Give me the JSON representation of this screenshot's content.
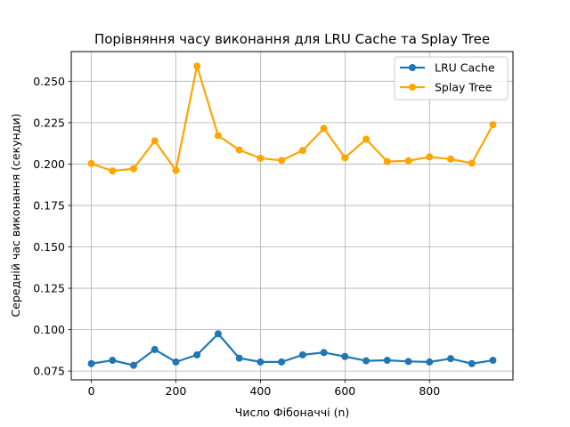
{
  "chart_data": {
    "type": "line",
    "title": "Порівняння часу виконання для LRU Cache та Splay Tree",
    "xlabel": "Число Фібоначчі (n)",
    "ylabel": "Середній час виконання (секунди)",
    "x": [
      0,
      50,
      100,
      150,
      200,
      250,
      300,
      350,
      400,
      450,
      500,
      550,
      600,
      650,
      700,
      750,
      800,
      850,
      900,
      950
    ],
    "xlim": [
      -47.5,
      997.5
    ],
    "ylim": [
      0.0697,
      0.2679
    ],
    "xticks": [
      0,
      200,
      400,
      600,
      800
    ],
    "xtick_labels": [
      "0",
      "200",
      "400",
      "600",
      "800"
    ],
    "yticks": [
      0.075,
      0.1,
      0.125,
      0.15,
      0.175,
      0.2,
      0.225,
      0.25
    ],
    "ytick_labels": [
      "0.075",
      "0.100",
      "0.125",
      "0.150",
      "0.175",
      "0.200",
      "0.225",
      "0.250"
    ],
    "grid": true,
    "legend_position": "top-right",
    "series": [
      {
        "name": "LRU Cache",
        "color": "#1f77b4",
        "values": [
          0.0795,
          0.0815,
          0.0785,
          0.088,
          0.0805,
          0.0848,
          0.0975,
          0.0828,
          0.0805,
          0.0805,
          0.0848,
          0.0862,
          0.0838,
          0.0812,
          0.0815,
          0.0808,
          0.0805,
          0.0825,
          0.0795,
          0.0815
        ]
      },
      {
        "name": "Splay Tree",
        "color": "#ffa500",
        "values": [
          0.2003,
          0.1958,
          0.1972,
          0.214,
          0.1962,
          0.2592,
          0.2172,
          0.2085,
          0.2035,
          0.2022,
          0.2082,
          0.2215,
          0.2038,
          0.215,
          0.2015,
          0.202,
          0.2043,
          0.203,
          0.2005,
          0.2238
        ]
      }
    ]
  }
}
